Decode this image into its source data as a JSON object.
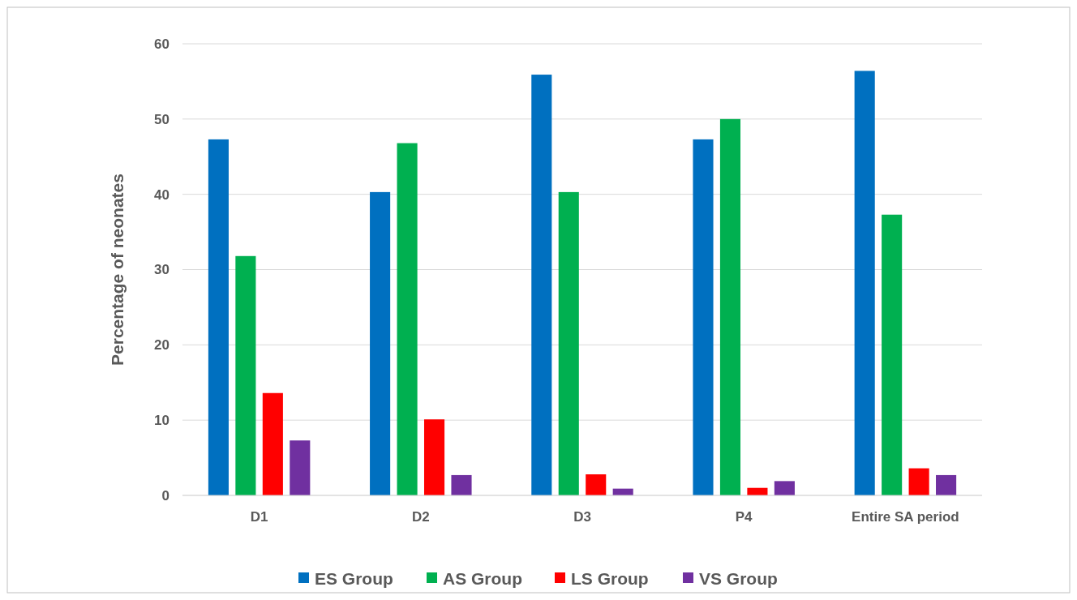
{
  "chart_data": {
    "type": "bar",
    "ylabel": "Percentage of neonates",
    "categories": [
      "D1",
      "D2",
      "D3",
      "P4",
      "Entire SA period"
    ],
    "series": [
      {
        "name": "ES Group",
        "color": "#0070c0",
        "values": [
          47.3,
          40.3,
          55.9,
          47.3,
          56.4
        ]
      },
      {
        "name": "AS Group",
        "color": "#00b050",
        "values": [
          31.8,
          46.8,
          40.3,
          50.0,
          37.3
        ]
      },
      {
        "name": "LS Group",
        "color": "#ff0000",
        "values": [
          13.6,
          10.1,
          2.8,
          1.0,
          3.6
        ]
      },
      {
        "name": "VS Group",
        "color": "#7030a0",
        "values": [
          7.3,
          2.7,
          0.9,
          1.9,
          2.7
        ]
      }
    ],
    "ylim": [
      0,
      60
    ],
    "yticks": [
      0,
      10,
      20,
      30,
      40,
      50,
      60
    ],
    "grid": "y",
    "legend": "bottom"
  }
}
